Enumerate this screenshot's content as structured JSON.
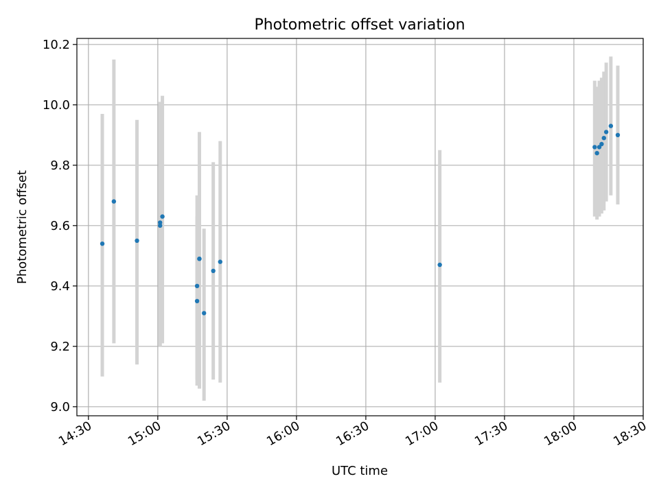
{
  "chart_data": {
    "type": "scatter",
    "title": "Photometric offset variation",
    "xlabel": "UTC time",
    "ylabel": "Photometric offset",
    "x_axis_type": "time",
    "xlim": [
      "14:25",
      "18:30"
    ],
    "ylim": [
      8.97,
      10.22
    ],
    "x_ticks": [
      "14:30",
      "15:00",
      "15:30",
      "16:00",
      "16:30",
      "17:00",
      "17:30",
      "18:00",
      "18:30"
    ],
    "y_ticks": [
      "9.0",
      "9.2",
      "9.4",
      "9.6",
      "9.8",
      "10.0",
      "10.2"
    ],
    "grid": true,
    "errorbar_color": "#d3d3d3",
    "point_color": "#1f77b4",
    "points": [
      {
        "x": "14:36",
        "y": 9.54,
        "err_low": 9.1,
        "err_high": 9.97
      },
      {
        "x": "14:41",
        "y": 9.68,
        "err_low": 9.21,
        "err_high": 10.15
      },
      {
        "x": "14:51",
        "y": 9.55,
        "err_low": 9.14,
        "err_high": 9.95
      },
      {
        "x": "15:01",
        "y": 9.61,
        "err_low": 9.2,
        "err_high": 10.01
      },
      {
        "x": "15:01",
        "y": 9.6,
        "err_low": 9.2,
        "err_high": 10.0
      },
      {
        "x": "15:02",
        "y": 9.63,
        "err_low": 9.21,
        "err_high": 10.03
      },
      {
        "x": "15:17",
        "y": 9.35,
        "err_low": 9.07,
        "err_high": 9.63
      },
      {
        "x": "15:17",
        "y": 9.4,
        "err_low": 9.09,
        "err_high": 9.7
      },
      {
        "x": "15:18",
        "y": 9.49,
        "err_low": 9.06,
        "err_high": 9.85
      },
      {
        "x": "15:18",
        "y": 9.49,
        "err_low": 9.06,
        "err_high": 9.91
      },
      {
        "x": "15:20",
        "y": 9.31,
        "err_low": 9.02,
        "err_high": 9.59
      },
      {
        "x": "15:24",
        "y": 9.45,
        "err_low": 9.09,
        "err_high": 9.81
      },
      {
        "x": "15:27",
        "y": 9.48,
        "err_low": 9.08,
        "err_high": 9.88
      },
      {
        "x": "17:02",
        "y": 9.47,
        "err_low": 9.08,
        "err_high": 9.85
      },
      {
        "x": "18:09",
        "y": 9.86,
        "err_low": 9.63,
        "err_high": 10.08
      },
      {
        "x": "18:10",
        "y": 9.84,
        "err_low": 9.62,
        "err_high": 10.06
      },
      {
        "x": "18:11",
        "y": 9.86,
        "err_low": 9.63,
        "err_high": 10.08
      },
      {
        "x": "18:12",
        "y": 9.87,
        "err_low": 9.64,
        "err_high": 10.09
      },
      {
        "x": "18:13",
        "y": 9.89,
        "err_low": 9.65,
        "err_high": 10.11
      },
      {
        "x": "18:14",
        "y": 9.91,
        "err_low": 9.68,
        "err_high": 10.14
      },
      {
        "x": "18:16",
        "y": 9.93,
        "err_low": 9.7,
        "err_high": 10.16
      },
      {
        "x": "18:19",
        "y": 9.9,
        "err_low": 9.67,
        "err_high": 10.13
      }
    ]
  }
}
